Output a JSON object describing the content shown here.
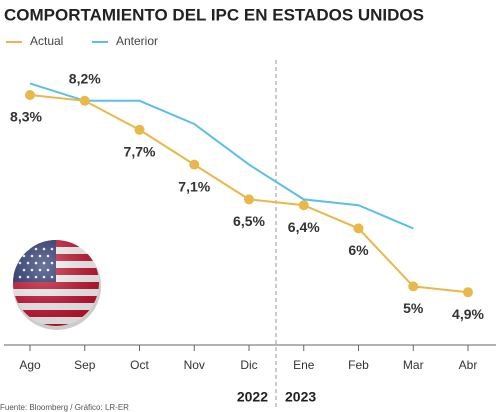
{
  "chart_data": {
    "type": "line",
    "title": "COMPORTAMIENTO DEL IPC EN ESTADOS UNIDOS",
    "categories": [
      "Ago",
      "Sep",
      "Oct",
      "Nov",
      "Dic",
      "Ene",
      "Feb",
      "Mar",
      "Abr"
    ],
    "series": [
      {
        "name": "Actual",
        "color": "#e8b84a",
        "values": [
          8.3,
          8.2,
          7.7,
          7.1,
          6.5,
          6.4,
          6,
          5,
          4.9
        ],
        "value_labels": [
          "8,3%",
          "8,2%",
          "7,7%",
          "7,1%",
          "6,5%",
          "6,4%",
          "6%",
          "5%",
          "4,9%"
        ]
      },
      {
        "name": "Anterior",
        "color": "#5bbfe6",
        "values": [
          8.5,
          8.2,
          8.2,
          7.8,
          7.1,
          6.5,
          6.4,
          6,
          null
        ]
      }
    ],
    "ylim": [
      4.5,
      8.7
    ],
    "annotations": [
      "2022",
      "2023"
    ],
    "source": "Fuente: Bloomberg / Gráfico: LR-ER"
  }
}
